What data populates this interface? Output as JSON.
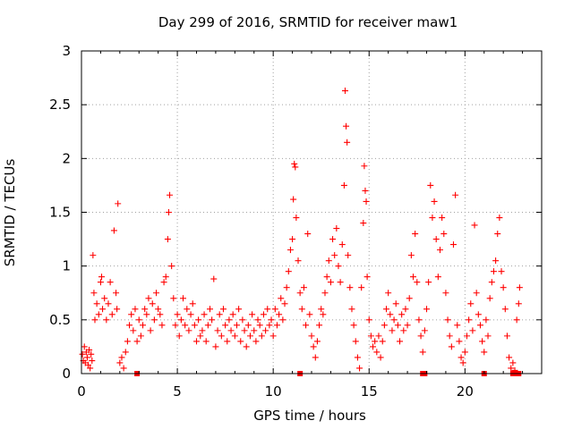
{
  "chart_data": {
    "type": "scatter",
    "title": "Day 299 of 2016, SRMTID for receiver maw1",
    "xlabel": "GPS time / hours",
    "ylabel": "SRMTID / TECUs",
    "xlim": [
      0,
      24
    ],
    "ylim": [
      0,
      3
    ],
    "grid": true,
    "marker": "plus",
    "marker_color": "#ff0000",
    "x_ticks": [
      0,
      5,
      10,
      15,
      20
    ],
    "x_tick_labels": [
      "0",
      "5",
      "10",
      "15",
      "20"
    ],
    "y_ticks": [
      0,
      0.5,
      1,
      1.5,
      2,
      2.5,
      3
    ],
    "y_tick_labels": [
      "0",
      "0.5",
      "1",
      "1.5",
      "2",
      "2.5",
      "3"
    ],
    "series": [
      {
        "name": "SRMTID",
        "points": [
          [
            0.05,
            0.18
          ],
          [
            0.1,
            0.12
          ],
          [
            0.15,
            0.25
          ],
          [
            0.2,
            0.1
          ],
          [
            0.25,
            0.2
          ],
          [
            0.3,
            0.15
          ],
          [
            0.35,
            0.08
          ],
          [
            0.4,
            0.22
          ],
          [
            0.45,
            0.05
          ],
          [
            0.5,
            0.18
          ],
          [
            0.55,
            0.12
          ],
          [
            0.6,
            1.1
          ],
          [
            0.65,
            0.75
          ],
          [
            0.7,
            0.5
          ],
          [
            0.8,
            0.65
          ],
          [
            0.9,
            0.55
          ],
          [
            1.0,
            0.85
          ],
          [
            1.05,
            0.9
          ],
          [
            1.1,
            0.6
          ],
          [
            1.2,
            0.7
          ],
          [
            1.3,
            0.5
          ],
          [
            1.4,
            0.65
          ],
          [
            1.5,
            0.85
          ],
          [
            1.6,
            0.55
          ],
          [
            1.7,
            1.33
          ],
          [
            1.8,
            0.75
          ],
          [
            1.85,
            0.6
          ],
          [
            1.9,
            1.58
          ],
          [
            2.0,
            0.1
          ],
          [
            2.1,
            0.15
          ],
          [
            2.2,
            0.05
          ],
          [
            2.3,
            0.2
          ],
          [
            2.4,
            0.3
          ],
          [
            2.5,
            0.45
          ],
          [
            2.6,
            0.55
          ],
          [
            2.7,
            0.4
          ],
          [
            2.8,
            0.6
          ],
          [
            2.9,
            0.3
          ],
          [
            3.0,
            0.5
          ],
          [
            3.1,
            0.35
          ],
          [
            3.2,
            0.45
          ],
          [
            3.3,
            0.6
          ],
          [
            3.4,
            0.55
          ],
          [
            3.5,
            0.7
          ],
          [
            3.6,
            0.4
          ],
          [
            3.7,
            0.65
          ],
          [
            3.8,
            0.5
          ],
          [
            3.9,
            0.75
          ],
          [
            4.0,
            0.6
          ],
          [
            4.1,
            0.55
          ],
          [
            4.2,
            0.45
          ],
          [
            4.3,
            0.85
          ],
          [
            4.4,
            0.9
          ],
          [
            4.5,
            1.25
          ],
          [
            4.55,
            1.5
          ],
          [
            4.6,
            1.66
          ],
          [
            4.7,
            1.0
          ],
          [
            4.8,
            0.7
          ],
          [
            4.9,
            0.45
          ],
          [
            5.0,
            0.55
          ],
          [
            5.1,
            0.35
          ],
          [
            5.2,
            0.5
          ],
          [
            5.3,
            0.7
          ],
          [
            5.4,
            0.45
          ],
          [
            5.5,
            0.6
          ],
          [
            5.6,
            0.4
          ],
          [
            5.7,
            0.55
          ],
          [
            5.8,
            0.65
          ],
          [
            5.9,
            0.45
          ],
          [
            6.0,
            0.3
          ],
          [
            6.1,
            0.5
          ],
          [
            6.2,
            0.35
          ],
          [
            6.3,
            0.4
          ],
          [
            6.4,
            0.55
          ],
          [
            6.5,
            0.3
          ],
          [
            6.6,
            0.45
          ],
          [
            6.7,
            0.6
          ],
          [
            6.8,
            0.5
          ],
          [
            6.9,
            0.88
          ],
          [
            7.0,
            0.25
          ],
          [
            7.1,
            0.4
          ],
          [
            7.2,
            0.55
          ],
          [
            7.3,
            0.35
          ],
          [
            7.4,
            0.6
          ],
          [
            7.5,
            0.45
          ],
          [
            7.6,
            0.3
          ],
          [
            7.7,
            0.5
          ],
          [
            7.8,
            0.4
          ],
          [
            7.9,
            0.55
          ],
          [
            8.0,
            0.35
          ],
          [
            8.1,
            0.45
          ],
          [
            8.2,
            0.6
          ],
          [
            8.3,
            0.3
          ],
          [
            8.4,
            0.5
          ],
          [
            8.5,
            0.4
          ],
          [
            8.6,
            0.25
          ],
          [
            8.7,
            0.45
          ],
          [
            8.8,
            0.35
          ],
          [
            8.9,
            0.55
          ],
          [
            9.0,
            0.4
          ],
          [
            9.1,
            0.3
          ],
          [
            9.2,
            0.5
          ],
          [
            9.3,
            0.45
          ],
          [
            9.4,
            0.35
          ],
          [
            9.5,
            0.55
          ],
          [
            9.6,
            0.4
          ],
          [
            9.7,
            0.6
          ],
          [
            9.8,
            0.45
          ],
          [
            9.9,
            0.5
          ],
          [
            10.0,
            0.35
          ],
          [
            10.1,
            0.6
          ],
          [
            10.2,
            0.45
          ],
          [
            10.3,
            0.55
          ],
          [
            10.4,
            0.7
          ],
          [
            10.5,
            0.5
          ],
          [
            10.6,
            0.65
          ],
          [
            10.7,
            0.8
          ],
          [
            10.8,
            0.95
          ],
          [
            10.9,
            1.15
          ],
          [
            11.0,
            1.25
          ],
          [
            11.05,
            1.62
          ],
          [
            11.1,
            1.95
          ],
          [
            11.15,
            1.92
          ],
          [
            11.2,
            1.45
          ],
          [
            11.3,
            1.05
          ],
          [
            11.4,
            0.75
          ],
          [
            11.5,
            0.6
          ],
          [
            11.6,
            0.8
          ],
          [
            11.7,
            0.45
          ],
          [
            11.8,
            1.3
          ],
          [
            11.9,
            0.55
          ],
          [
            12.0,
            0.35
          ],
          [
            12.1,
            0.25
          ],
          [
            12.2,
            0.15
          ],
          [
            12.3,
            0.3
          ],
          [
            12.4,
            0.45
          ],
          [
            12.5,
            0.6
          ],
          [
            12.6,
            0.55
          ],
          [
            12.7,
            0.75
          ],
          [
            12.8,
            0.9
          ],
          [
            12.9,
            1.05
          ],
          [
            13.0,
            0.85
          ],
          [
            13.1,
            1.25
          ],
          [
            13.2,
            1.1
          ],
          [
            13.3,
            1.35
          ],
          [
            13.4,
            1.0
          ],
          [
            13.5,
            0.85
          ],
          [
            13.6,
            1.2
          ],
          [
            13.7,
            1.75
          ],
          [
            13.75,
            2.63
          ],
          [
            13.8,
            2.3
          ],
          [
            13.85,
            2.15
          ],
          [
            13.9,
            1.1
          ],
          [
            14.0,
            0.8
          ],
          [
            14.1,
            0.6
          ],
          [
            14.2,
            0.45
          ],
          [
            14.3,
            0.3
          ],
          [
            14.4,
            0.15
          ],
          [
            14.5,
            0.05
          ],
          [
            14.6,
            0.8
          ],
          [
            14.7,
            1.4
          ],
          [
            14.75,
            1.93
          ],
          [
            14.8,
            1.7
          ],
          [
            14.85,
            1.6
          ],
          [
            14.9,
            0.9
          ],
          [
            15.0,
            0.5
          ],
          [
            15.1,
            0.35
          ],
          [
            15.2,
            0.25
          ],
          [
            15.3,
            0.3
          ],
          [
            15.4,
            0.2
          ],
          [
            15.5,
            0.35
          ],
          [
            15.6,
            0.15
          ],
          [
            15.7,
            0.3
          ],
          [
            15.8,
            0.45
          ],
          [
            15.9,
            0.6
          ],
          [
            16.0,
            0.75
          ],
          [
            16.1,
            0.55
          ],
          [
            16.2,
            0.4
          ],
          [
            16.3,
            0.5
          ],
          [
            16.4,
            0.65
          ],
          [
            16.5,
            0.45
          ],
          [
            16.6,
            0.3
          ],
          [
            16.7,
            0.55
          ],
          [
            16.8,
            0.4
          ],
          [
            16.9,
            0.6
          ],
          [
            17.0,
            0.45
          ],
          [
            17.1,
            0.7
          ],
          [
            17.2,
            1.1
          ],
          [
            17.3,
            0.9
          ],
          [
            17.4,
            1.3
          ],
          [
            17.5,
            0.85
          ],
          [
            17.6,
            0.5
          ],
          [
            17.7,
            0.35
          ],
          [
            17.8,
            0.2
          ],
          [
            17.9,
            0.4
          ],
          [
            18.0,
            0.6
          ],
          [
            18.1,
            0.85
          ],
          [
            18.2,
            1.75
          ],
          [
            18.3,
            1.45
          ],
          [
            18.4,
            1.6
          ],
          [
            18.5,
            1.25
          ],
          [
            18.6,
            0.9
          ],
          [
            18.7,
            1.15
          ],
          [
            18.8,
            1.45
          ],
          [
            18.9,
            1.3
          ],
          [
            19.0,
            0.75
          ],
          [
            19.1,
            0.5
          ],
          [
            19.2,
            0.35
          ],
          [
            19.3,
            0.25
          ],
          [
            19.4,
            1.2
          ],
          [
            19.5,
            1.66
          ],
          [
            19.6,
            0.45
          ],
          [
            19.7,
            0.3
          ],
          [
            19.8,
            0.15
          ],
          [
            19.9,
            0.1
          ],
          [
            20.0,
            0.2
          ],
          [
            20.1,
            0.35
          ],
          [
            20.2,
            0.5
          ],
          [
            20.3,
            0.65
          ],
          [
            20.4,
            0.4
          ],
          [
            20.5,
            1.38
          ],
          [
            20.6,
            0.75
          ],
          [
            20.7,
            0.55
          ],
          [
            20.8,
            0.45
          ],
          [
            20.9,
            0.3
          ],
          [
            21.0,
            0.2
          ],
          [
            21.1,
            0.5
          ],
          [
            21.2,
            0.35
          ],
          [
            21.3,
            0.7
          ],
          [
            21.4,
            0.85
          ],
          [
            21.5,
            0.95
          ],
          [
            21.6,
            1.05
          ],
          [
            21.7,
            1.3
          ],
          [
            21.8,
            1.45
          ],
          [
            21.9,
            0.95
          ],
          [
            22.0,
            0.8
          ],
          [
            22.1,
            0.6
          ],
          [
            22.2,
            0.35
          ],
          [
            22.3,
            0.15
          ],
          [
            22.4,
            0.05
          ],
          [
            22.5,
            0.1
          ],
          [
            22.6,
            0.03
          ],
          [
            22.7,
            0.5
          ],
          [
            22.8,
            0.65
          ],
          [
            22.85,
            0.8
          ]
        ]
      }
    ],
    "zero_markers_x": [
      2.9,
      11.4,
      17.8,
      17.9,
      21.0,
      22.5,
      22.6,
      22.8
    ]
  }
}
